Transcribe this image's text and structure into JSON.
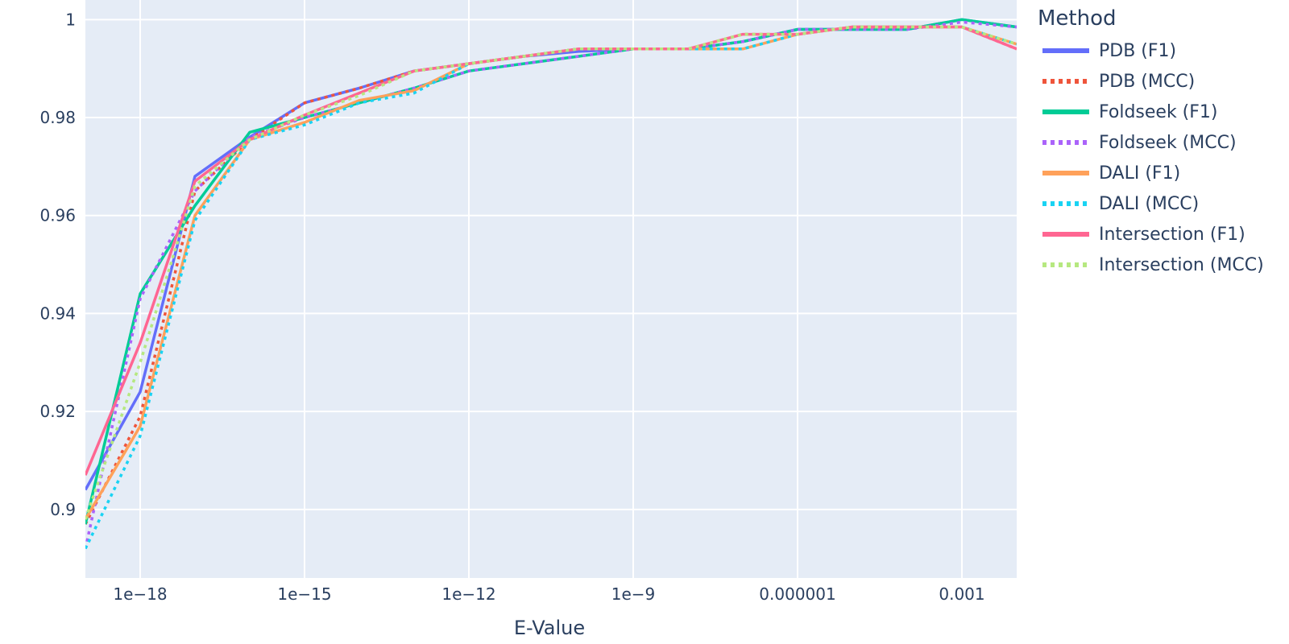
{
  "chart_data": {
    "type": "line",
    "xlabel": "E-Value",
    "ylabel": "",
    "x_scale": "log",
    "xlim": [
      1e-19,
      0.01
    ],
    "ylim": [
      0.886,
      1.004
    ],
    "x_ticks": [
      1e-18,
      1e-15,
      1e-12,
      1e-09,
      1e-06,
      0.001
    ],
    "x_tick_labels": [
      "1e−18",
      "1e−15",
      "1e−12",
      "1e−9",
      "0.000001",
      "0.001"
    ],
    "y_ticks": [
      0.9,
      0.92,
      0.94,
      0.96,
      0.98,
      1
    ],
    "y_tick_labels": [
      "0.9",
      "0.92",
      "0.94",
      "0.96",
      "0.98",
      "1"
    ],
    "grid": true,
    "background": "#e5ecf6",
    "legend_title": "Method",
    "legend_position": "right",
    "x": [
      1e-19,
      1e-18,
      1e-17,
      1e-16,
      1e-15,
      1e-14,
      1e-13,
      1e-12,
      1e-11,
      1e-10,
      1e-09,
      1e-08,
      1e-07,
      1e-06,
      1e-05,
      0.0001,
      0.001,
      0.01
    ],
    "series": [
      {
        "name": "PDB (F1)",
        "color": "#636efa",
        "dash": "solid",
        "values": [
          0.904,
          0.924,
          0.968,
          0.976,
          0.983,
          0.986,
          0.9895,
          0.991,
          0.9925,
          0.9935,
          0.994,
          0.994,
          0.9955,
          0.998,
          0.998,
          0.998,
          1.0,
          0.9985
        ]
      },
      {
        "name": "PDB (MCC)",
        "color": "#ef553b",
        "dash": "dot",
        "values": [
          0.897,
          0.919,
          0.965,
          0.9755,
          0.983,
          0.986,
          0.9895,
          0.991,
          0.9925,
          0.994,
          0.994,
          0.994,
          0.997,
          0.997,
          0.9985,
          0.9985,
          0.9985,
          0.994
        ]
      },
      {
        "name": "Foldseek (F1)",
        "color": "#00cc96",
        "dash": "solid",
        "values": [
          0.897,
          0.944,
          0.962,
          0.977,
          0.98,
          0.983,
          0.986,
          0.9895,
          0.991,
          0.9925,
          0.994,
          0.994,
          0.9955,
          0.998,
          0.998,
          0.998,
          1.0,
          0.9985
        ]
      },
      {
        "name": "Foldseek (MCC)",
        "color": "#ab63fa",
        "dash": "dot",
        "values": [
          0.892,
          0.943,
          0.965,
          0.976,
          0.98,
          0.983,
          0.986,
          0.9895,
          0.991,
          0.9925,
          0.994,
          0.994,
          0.9955,
          0.998,
          0.998,
          0.998,
          0.9995,
          0.9985
        ]
      },
      {
        "name": "DALI (F1)",
        "color": "#ffa15a",
        "dash": "solid",
        "values": [
          0.898,
          0.917,
          0.96,
          0.9755,
          0.979,
          0.9835,
          0.9855,
          0.991,
          0.9925,
          0.994,
          0.994,
          0.994,
          0.994,
          0.997,
          0.9985,
          0.9985,
          0.9985,
          0.995
        ]
      },
      {
        "name": "DALI (MCC)",
        "color": "#19d3f3",
        "dash": "dot",
        "values": [
          0.892,
          0.915,
          0.959,
          0.9755,
          0.9785,
          0.983,
          0.985,
          0.991,
          0.9925,
          0.994,
          0.994,
          0.994,
          0.994,
          0.997,
          0.9985,
          0.9985,
          0.9985,
          0.995
        ]
      },
      {
        "name": "Intersection (F1)",
        "color": "#ff6692",
        "dash": "solid",
        "values": [
          0.907,
          0.934,
          0.967,
          0.9755,
          0.9805,
          0.985,
          0.9895,
          0.991,
          0.9925,
          0.994,
          0.994,
          0.994,
          0.997,
          0.997,
          0.9985,
          0.9985,
          0.9985,
          0.994
        ]
      },
      {
        "name": "Intersection (MCC)",
        "color": "#b6e880",
        "dash": "dot",
        "values": [
          0.898,
          0.93,
          0.966,
          0.9755,
          0.9805,
          0.9845,
          0.9895,
          0.991,
          0.9925,
          0.994,
          0.994,
          0.994,
          0.997,
          0.997,
          0.9985,
          0.9985,
          0.9985,
          0.995
        ]
      }
    ]
  }
}
